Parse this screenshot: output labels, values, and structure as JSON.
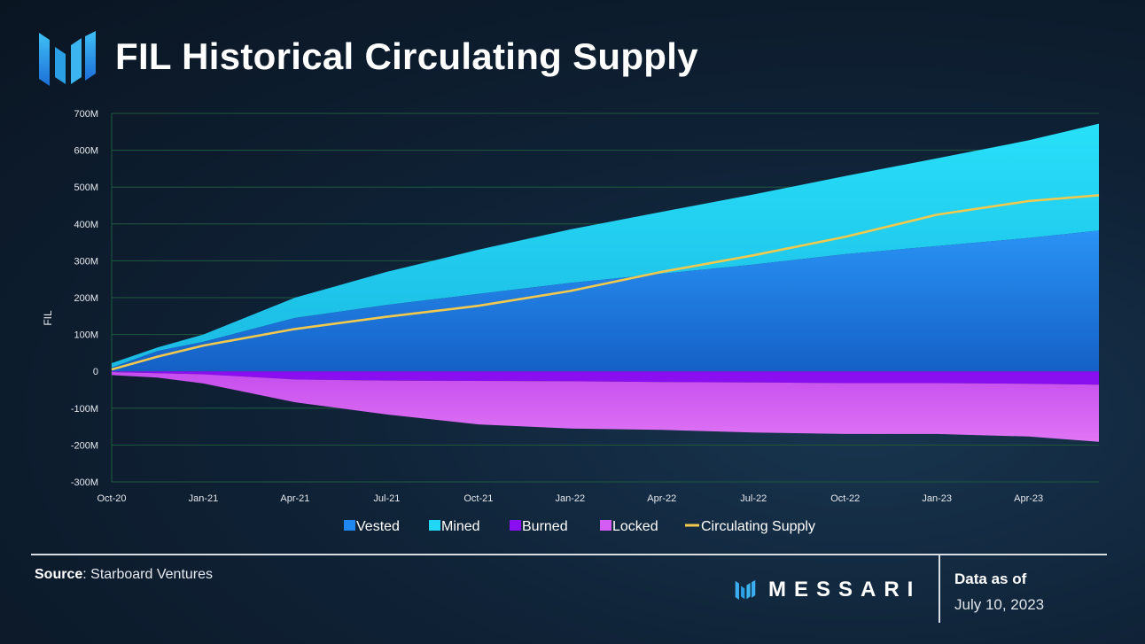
{
  "header": {
    "title": "FIL Historical Circulating Supply"
  },
  "footer": {
    "source_label": "Source",
    "source_text": ": Starboard Ventures",
    "brand": "MESSARI",
    "data_as_of_label": "Data as of",
    "data_as_of_date": "July 10, 2023"
  },
  "colors": {
    "vested": "#1e88f0",
    "mined": "#22d6f5",
    "burned": "#8a0ff0",
    "locked": "#d35cf2",
    "circulating": "#f2c94c",
    "grid": "#1f5a3c",
    "axis_text": "#e6e9ee"
  },
  "chart_data": {
    "type": "area",
    "title": "FIL Historical Circulating Supply",
    "xlabel": "",
    "ylabel": "FIL",
    "ylim": [
      -300,
      700
    ],
    "y_unit": "M",
    "y_ticks": [
      "700M",
      "600M",
      "500M",
      "400M",
      "300M",
      "200M",
      "100M",
      "0",
      "-100M",
      "-200M",
      "-300M"
    ],
    "y_tick_values": [
      700,
      600,
      500,
      400,
      300,
      200,
      100,
      0,
      -100,
      -200,
      -300
    ],
    "x_ticks": [
      "Oct-20",
      "Jan-21",
      "Apr-21",
      "Jul-21",
      "Oct-21",
      "Jan-22",
      "Apr-22",
      "Jul-22",
      "Oct-22",
      "Jan-23",
      "Apr-23"
    ],
    "x_end_month": 32.3,
    "x_months": [
      0,
      1.5,
      3,
      6,
      9,
      12,
      15,
      18,
      21,
      24,
      27,
      30,
      32.3
    ],
    "series": [
      {
        "name": "Vested",
        "stack": "positive",
        "values": [
          10,
          55,
          80,
          145,
          180,
          210,
          240,
          265,
          290,
          318,
          340,
          362,
          382
        ]
      },
      {
        "name": "Mined",
        "stack": "positive",
        "values": [
          12,
          10,
          20,
          55,
          90,
          120,
          145,
          168,
          190,
          212,
          238,
          265,
          290
        ]
      },
      {
        "name": "Burned",
        "stack": "negative",
        "values": [
          -2,
          -5,
          -8,
          -22,
          -25,
          -26,
          -27,
          -29,
          -30,
          -32,
          -32,
          -34,
          -36
        ]
      },
      {
        "name": "Locked",
        "stack": "negative",
        "values": [
          -8,
          -12,
          -25,
          -62,
          -92,
          -118,
          -128,
          -130,
          -136,
          -138,
          -138,
          -143,
          -155
        ]
      },
      {
        "name": "Circulating Supply",
        "type": "line",
        "values": [
          5,
          40,
          70,
          115,
          148,
          178,
          218,
          270,
          315,
          365,
          425,
          462,
          478
        ]
      }
    ],
    "legend": [
      "Vested",
      "Mined",
      "Burned",
      "Locked",
      "Circulating Supply"
    ],
    "legend_position": "bottom-center"
  }
}
